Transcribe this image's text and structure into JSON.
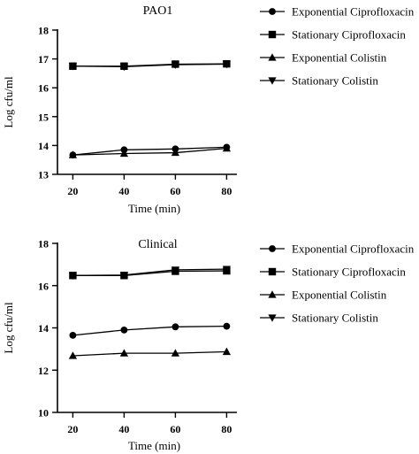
{
  "chart_data": [
    {
      "type": "line",
      "title": "PAO1",
      "xlabel": "Time (min)",
      "ylabel": "Log cfu/ml",
      "x": [
        20,
        40,
        60,
        80
      ],
      "xticks": [
        20,
        40,
        60,
        80
      ],
      "ylim": [
        13,
        18
      ],
      "yticks": [
        13,
        14,
        15,
        16,
        17,
        18
      ],
      "legend": "right",
      "series": [
        {
          "name": "Exponential Ciprofloxacin",
          "marker": "circle",
          "values": [
            13.67,
            13.85,
            13.88,
            13.94
          ]
        },
        {
          "name": "Stationary Ciprofloxacin",
          "marker": "square",
          "values": [
            16.75,
            16.75,
            16.82,
            16.83
          ]
        },
        {
          "name": "Exponential Colistin",
          "marker": "triangle-up",
          "values": [
            13.67,
            13.72,
            13.75,
            13.9
          ]
        },
        {
          "name": "Stationary Colistin",
          "marker": "triangle-down",
          "values": [
            16.75,
            16.73,
            16.8,
            16.82
          ]
        }
      ]
    },
    {
      "type": "line",
      "title": "Clinical",
      "xlabel": "Time (min)",
      "ylabel": "Log cfu/ml",
      "x": [
        20,
        40,
        60,
        80
      ],
      "xticks": [
        20,
        40,
        60,
        80
      ],
      "ylim": [
        10,
        18
      ],
      "yticks": [
        10,
        12,
        14,
        16,
        18
      ],
      "legend": "right",
      "series": [
        {
          "name": "Exponential Ciprofloxacin",
          "marker": "circle",
          "values": [
            13.65,
            13.9,
            14.05,
            14.08
          ]
        },
        {
          "name": "Stationary Ciprofloxacin",
          "marker": "square",
          "values": [
            16.48,
            16.48,
            16.68,
            16.7
          ]
        },
        {
          "name": "Exponential Colistin",
          "marker": "triangle-up",
          "values": [
            12.68,
            12.8,
            12.8,
            12.87
          ]
        },
        {
          "name": "Stationary Colistin",
          "marker": "triangle-down",
          "values": [
            16.48,
            16.5,
            16.75,
            16.78
          ]
        }
      ]
    }
  ]
}
